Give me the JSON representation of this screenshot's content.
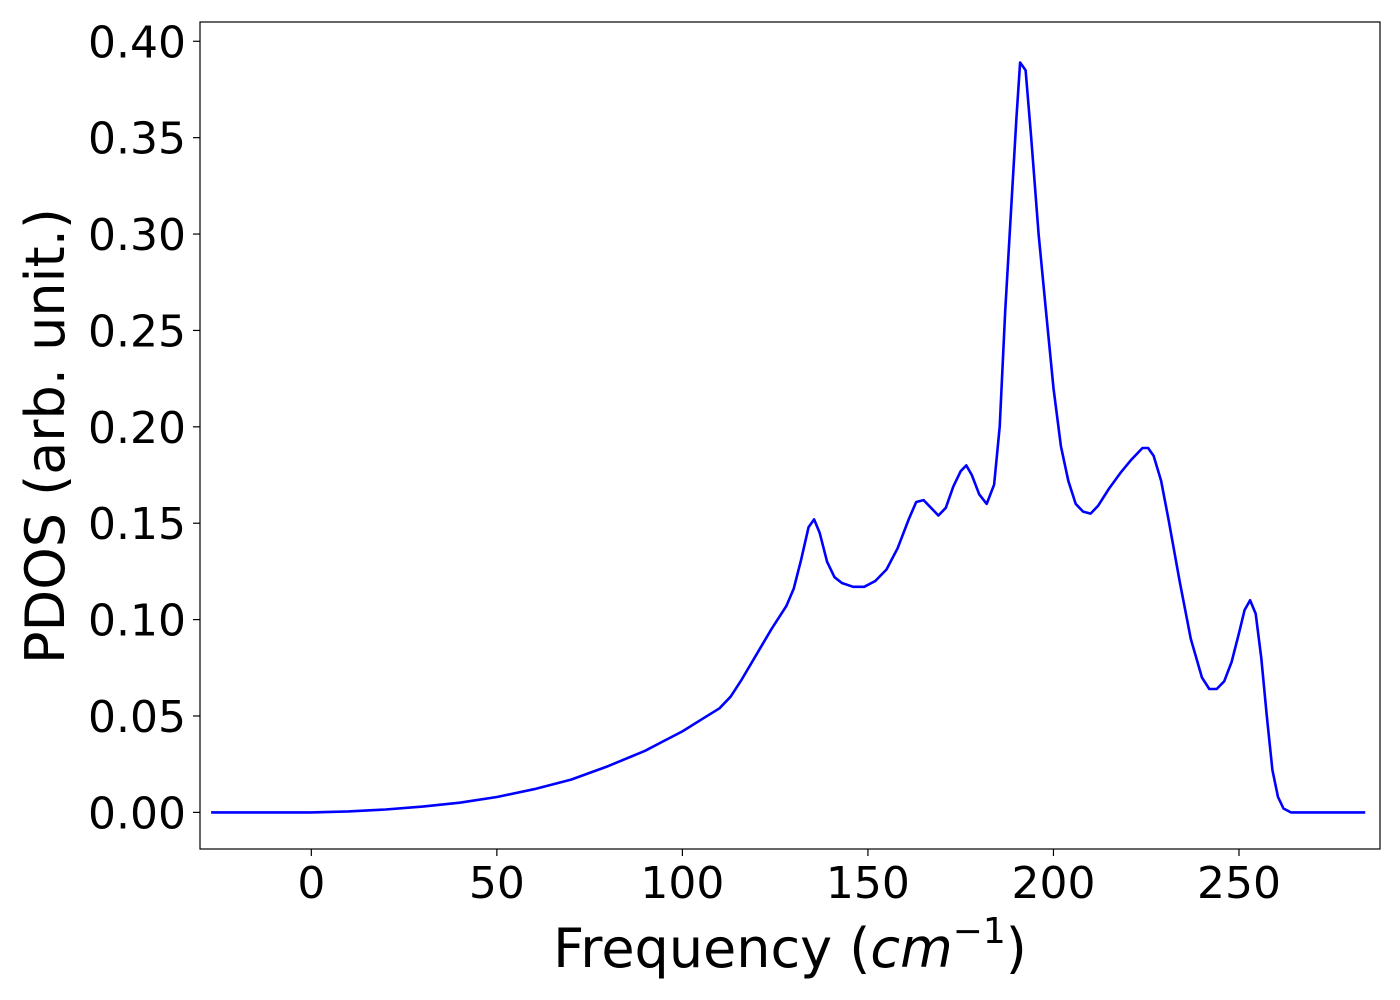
{
  "chart_data": {
    "type": "line",
    "xlabel": "Frequency (",
    "xlabel_math": "cm",
    "xlabel_sup": "−1",
    "xlabel_close": ")",
    "ylabel": "PDOS (arb. unit.)",
    "xlim": [
      -30,
      288
    ],
    "ylim": [
      -0.019,
      0.41
    ],
    "xticks": [
      0,
      50,
      100,
      150,
      200,
      250
    ],
    "xtick_labels": [
      "0",
      "50",
      "100",
      "150",
      "200",
      "250"
    ],
    "yticks": [
      0.0,
      0.05,
      0.1,
      0.15,
      0.2,
      0.25,
      0.3,
      0.35,
      0.4
    ],
    "ytick_labels": [
      "0.00",
      "0.05",
      "0.10",
      "0.15",
      "0.20",
      "0.25",
      "0.30",
      "0.35",
      "0.40"
    ],
    "grid": false,
    "line_color": "#0000ff",
    "series": [
      {
        "x": [
          -27,
          0,
          10,
          20,
          30,
          40,
          50,
          60,
          70,
          80,
          90,
          95,
          100,
          105,
          110,
          113,
          116,
          120,
          124,
          128,
          130,
          132,
          134,
          135.5,
          137,
          139,
          141,
          143,
          146,
          149,
          152,
          155,
          158,
          161,
          163,
          165,
          167,
          169,
          171,
          173,
          175,
          176.5,
          178,
          180,
          182,
          184,
          185.5,
          187,
          188.5,
          190,
          191,
          192.5,
          194,
          196,
          198,
          200,
          202,
          204,
          206,
          208,
          210,
          212,
          215,
          218,
          221,
          224,
          225.5,
          227,
          229,
          231,
          234,
          237,
          240,
          242,
          244,
          246,
          248,
          250,
          251.5,
          253,
          254.5,
          256,
          257.5,
          259,
          260.5,
          262,
          264,
          268,
          284
        ],
        "y": [
          0.0,
          0.0,
          0.0005,
          0.0015,
          0.003,
          0.005,
          0.008,
          0.012,
          0.017,
          0.024,
          0.032,
          0.037,
          0.042,
          0.048,
          0.054,
          0.06,
          0.069,
          0.082,
          0.095,
          0.107,
          0.116,
          0.131,
          0.148,
          0.152,
          0.145,
          0.13,
          0.122,
          0.119,
          0.117,
          0.117,
          0.12,
          0.126,
          0.137,
          0.152,
          0.161,
          0.162,
          0.158,
          0.154,
          0.158,
          0.169,
          0.177,
          0.18,
          0.175,
          0.165,
          0.16,
          0.17,
          0.2,
          0.26,
          0.31,
          0.36,
          0.389,
          0.385,
          0.35,
          0.3,
          0.26,
          0.22,
          0.19,
          0.172,
          0.16,
          0.156,
          0.155,
          0.159,
          0.168,
          0.176,
          0.183,
          0.189,
          0.189,
          0.185,
          0.172,
          0.152,
          0.12,
          0.09,
          0.07,
          0.064,
          0.064,
          0.068,
          0.078,
          0.093,
          0.105,
          0.11,
          0.103,
          0.08,
          0.05,
          0.022,
          0.008,
          0.002,
          0.0,
          0.0,
          0.0
        ]
      }
    ]
  }
}
